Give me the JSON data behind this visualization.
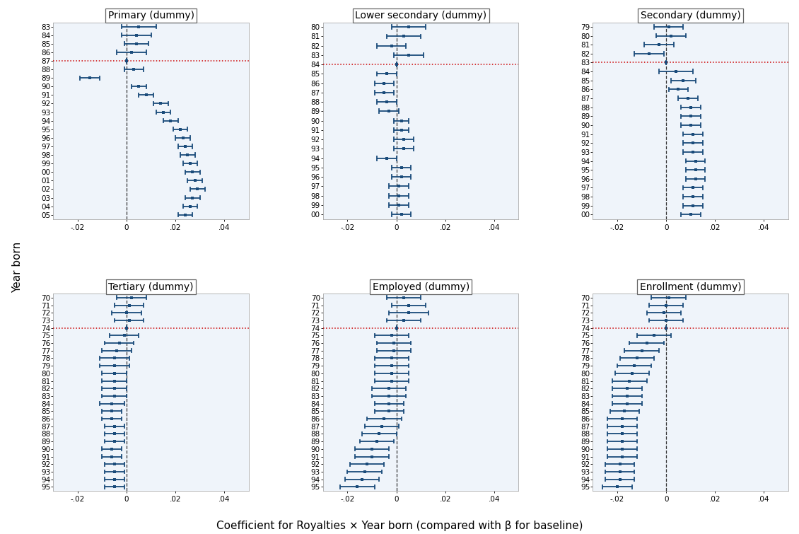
{
  "panels": [
    {
      "title": "Primary (dummy)",
      "years": [
        "83",
        "84",
        "85",
        "86",
        "87",
        "88",
        "89",
        "90",
        "91",
        "92",
        "93",
        "94",
        "95",
        "96",
        "97",
        "98",
        "99",
        "00",
        "01",
        "02",
        "03",
        "04",
        "05"
      ],
      "baseline_year": "87",
      "coefs": [
        0.005,
        0.004,
        0.004,
        0.002,
        0.0,
        0.003,
        -0.015,
        0.005,
        0.008,
        0.014,
        0.015,
        0.018,
        0.022,
        0.023,
        0.024,
        0.025,
        0.026,
        0.027,
        0.028,
        0.029,
        0.027,
        0.026,
        0.024
      ],
      "ci_lo": [
        -0.002,
        -0.002,
        -0.001,
        -0.004,
        0.0,
        -0.001,
        -0.019,
        0.002,
        0.005,
        0.011,
        0.012,
        0.015,
        0.019,
        0.02,
        0.021,
        0.022,
        0.023,
        0.024,
        0.025,
        0.026,
        0.024,
        0.023,
        0.021
      ],
      "ci_hi": [
        0.012,
        0.01,
        0.009,
        0.008,
        0.0,
        0.007,
        -0.011,
        0.008,
        0.011,
        0.017,
        0.018,
        0.021,
        0.025,
        0.026,
        0.027,
        0.028,
        0.029,
        0.03,
        0.031,
        0.032,
        0.03,
        0.029,
        0.027
      ]
    },
    {
      "title": "Lower secondary (dummy)",
      "years": [
        "80",
        "81",
        "82",
        "83",
        "84",
        "85",
        "86",
        "87",
        "88",
        "89",
        "90",
        "91",
        "92",
        "93",
        "94",
        "95",
        "96",
        "97",
        "98",
        "99",
        "00"
      ],
      "baseline_year": "84",
      "coefs": [
        0.005,
        0.003,
        -0.002,
        0.005,
        0.0,
        -0.004,
        -0.005,
        -0.005,
        -0.004,
        -0.003,
        0.002,
        0.002,
        0.003,
        0.003,
        -0.004,
        0.002,
        0.002,
        0.001,
        0.001,
        0.001,
        0.002
      ],
      "ci_lo": [
        -0.002,
        -0.004,
        -0.008,
        -0.001,
        0.0,
        -0.008,
        -0.009,
        -0.009,
        -0.008,
        -0.007,
        -0.001,
        -0.001,
        -0.001,
        -0.001,
        -0.008,
        -0.002,
        -0.002,
        -0.003,
        -0.003,
        -0.003,
        -0.002
      ],
      "ci_hi": [
        0.012,
        0.01,
        0.004,
        0.011,
        0.0,
        0.0,
        -0.001,
        -0.001,
        0.0,
        0.001,
        0.005,
        0.005,
        0.007,
        0.007,
        0.0,
        0.006,
        0.006,
        0.005,
        0.005,
        0.005,
        0.006
      ]
    },
    {
      "title": "Secondary (dummy)",
      "years": [
        "79",
        "80",
        "81",
        "82",
        "83",
        "84",
        "85",
        "86",
        "87",
        "88",
        "89",
        "90",
        "91",
        "92",
        "93",
        "94",
        "95",
        "96",
        "97",
        "98",
        "99",
        "00"
      ],
      "baseline_year": "83",
      "coefs": [
        0.001,
        0.002,
        -0.003,
        -0.007,
        0.0,
        0.004,
        0.007,
        0.005,
        0.009,
        0.01,
        0.01,
        0.01,
        0.011,
        0.011,
        0.011,
        0.012,
        0.012,
        0.012,
        0.011,
        0.011,
        0.011,
        0.01
      ],
      "ci_lo": [
        -0.005,
        -0.004,
        -0.009,
        -0.013,
        0.0,
        -0.003,
        0.002,
        0.001,
        0.005,
        0.006,
        0.006,
        0.006,
        0.007,
        0.007,
        0.007,
        0.008,
        0.008,
        0.008,
        0.007,
        0.007,
        0.007,
        0.006
      ],
      "ci_hi": [
        0.007,
        0.008,
        0.003,
        -0.001,
        0.0,
        0.011,
        0.012,
        0.009,
        0.013,
        0.014,
        0.014,
        0.014,
        0.015,
        0.015,
        0.015,
        0.016,
        0.016,
        0.016,
        0.015,
        0.015,
        0.015,
        0.014
      ]
    },
    {
      "title": "Tertiary (dummy)",
      "years": [
        "70",
        "71",
        "72",
        "73",
        "74",
        "75",
        "76",
        "77",
        "78",
        "79",
        "80",
        "81",
        "82",
        "83",
        "84",
        "85",
        "86",
        "87",
        "88",
        "89",
        "90",
        "91",
        "92",
        "93",
        "94",
        "95"
      ],
      "baseline_year": "74",
      "coefs": [
        0.002,
        0.001,
        0.0,
        0.001,
        0.0,
        -0.001,
        -0.003,
        -0.004,
        -0.005,
        -0.005,
        -0.005,
        -0.005,
        -0.005,
        -0.005,
        -0.006,
        -0.006,
        -0.006,
        -0.005,
        -0.005,
        -0.005,
        -0.006,
        -0.006,
        -0.005,
        -0.005,
        -0.005,
        -0.005
      ],
      "ci_lo": [
        -0.004,
        -0.005,
        -0.006,
        -0.005,
        0.0,
        -0.007,
        -0.009,
        -0.01,
        -0.011,
        -0.011,
        -0.01,
        -0.01,
        -0.01,
        -0.01,
        -0.011,
        -0.01,
        -0.01,
        -0.009,
        -0.009,
        -0.009,
        -0.01,
        -0.01,
        -0.009,
        -0.009,
        -0.009,
        -0.009
      ],
      "ci_hi": [
        0.008,
        0.007,
        0.006,
        0.007,
        0.0,
        0.005,
        0.003,
        0.002,
        0.001,
        0.001,
        0.0,
        0.0,
        0.0,
        0.0,
        -0.001,
        -0.002,
        -0.002,
        -0.001,
        -0.001,
        -0.001,
        -0.002,
        -0.002,
        -0.001,
        -0.001,
        -0.001,
        -0.001
      ]
    },
    {
      "title": "Employed (dummy)",
      "years": [
        "70",
        "71",
        "72",
        "73",
        "74",
        "75",
        "76",
        "77",
        "78",
        "79",
        "80",
        "81",
        "82",
        "83",
        "84",
        "85",
        "86",
        "87",
        "88",
        "89",
        "90",
        "91",
        "92",
        "93",
        "94",
        "95"
      ],
      "baseline_year": "74",
      "coefs": [
        0.003,
        0.005,
        0.005,
        0.003,
        0.0,
        -0.002,
        -0.001,
        -0.001,
        -0.002,
        -0.002,
        -0.002,
        -0.002,
        -0.003,
        -0.003,
        -0.003,
        -0.003,
        -0.005,
        -0.006,
        -0.007,
        -0.008,
        -0.01,
        -0.01,
        -0.012,
        -0.013,
        -0.014,
        -0.016
      ],
      "ci_lo": [
        -0.004,
        -0.002,
        -0.003,
        -0.004,
        0.0,
        -0.009,
        -0.008,
        -0.008,
        -0.009,
        -0.009,
        -0.009,
        -0.009,
        -0.01,
        -0.01,
        -0.009,
        -0.009,
        -0.012,
        -0.013,
        -0.014,
        -0.015,
        -0.017,
        -0.017,
        -0.019,
        -0.02,
        -0.021,
        -0.023
      ],
      "ci_hi": [
        0.01,
        0.012,
        0.013,
        0.01,
        0.0,
        0.005,
        0.006,
        0.006,
        0.005,
        0.005,
        0.005,
        0.005,
        0.004,
        0.004,
        0.003,
        0.003,
        0.002,
        0.001,
        0.0,
        -0.001,
        -0.003,
        -0.003,
        -0.005,
        -0.006,
        -0.007,
        -0.009
      ]
    },
    {
      "title": "Enrollment (dummy)",
      "years": [
        "70",
        "71",
        "72",
        "73",
        "74",
        "75",
        "76",
        "77",
        "78",
        "79",
        "80",
        "81",
        "82",
        "83",
        "84",
        "85",
        "86",
        "87",
        "88",
        "89",
        "90",
        "91",
        "92",
        "93",
        "94",
        "95"
      ],
      "baseline_year": "74",
      "coefs": [
        0.001,
        0.0,
        -0.001,
        0.0,
        0.0,
        -0.005,
        -0.008,
        -0.01,
        -0.012,
        -0.013,
        -0.014,
        -0.015,
        -0.016,
        -0.016,
        -0.016,
        -0.017,
        -0.018,
        -0.018,
        -0.018,
        -0.018,
        -0.018,
        -0.018,
        -0.019,
        -0.019,
        -0.019,
        -0.02
      ],
      "ci_lo": [
        -0.006,
        -0.007,
        -0.008,
        -0.007,
        0.0,
        -0.012,
        -0.015,
        -0.017,
        -0.019,
        -0.02,
        -0.021,
        -0.022,
        -0.022,
        -0.022,
        -0.022,
        -0.023,
        -0.024,
        -0.024,
        -0.024,
        -0.024,
        -0.024,
        -0.024,
        -0.025,
        -0.025,
        -0.025,
        -0.026
      ],
      "ci_hi": [
        0.008,
        0.007,
        0.006,
        0.007,
        0.0,
        0.002,
        -0.001,
        -0.003,
        -0.005,
        -0.006,
        -0.007,
        -0.008,
        -0.01,
        -0.01,
        -0.01,
        -0.011,
        -0.012,
        -0.012,
        -0.012,
        -0.012,
        -0.012,
        -0.012,
        -0.013,
        -0.013,
        -0.013,
        -0.014
      ]
    }
  ],
  "xlim": [
    -0.03,
    0.05
  ],
  "xticks": [
    -0.02,
    0.0,
    0.02,
    0.04
  ],
  "xticklabels": [
    "-.02",
    "0",
    ".02",
    ".04"
  ],
  "dot_color": "#1a4b7a",
  "ci_color": "#1a4b7a",
  "baseline_color": "#cc0000",
  "vline_color": "#333333",
  "bg_color": "#dce8f5",
  "xlabel": "Coefficient for Royalties × Year born (compared with β for baseline)",
  "ylabel": "Year born",
  "title_fontsize": 10,
  "tick_fontsize": 7.5
}
